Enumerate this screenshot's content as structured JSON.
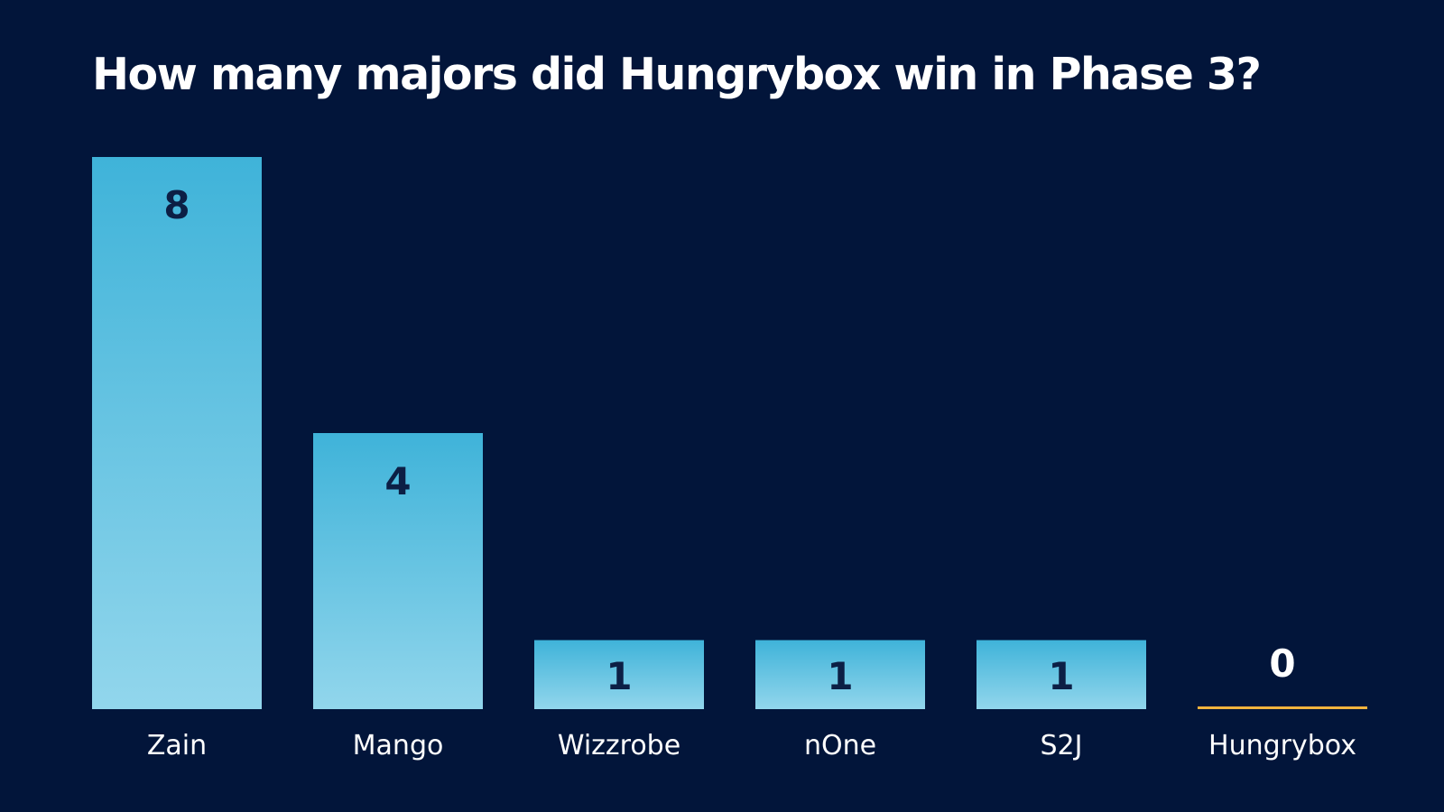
{
  "title": "How many majors did Hungrybox win in Phase 3?",
  "colors": {
    "background": "#02153a",
    "bar_top": "#3fb3d9",
    "bar_bottom": "#92d6ec",
    "bar_label": "#0c1f45",
    "highlight": "#f2b33d",
    "text": "#ffffff"
  },
  "chart_data": {
    "type": "bar",
    "title": "How many majors did Hungrybox win in Phase 3?",
    "categories": [
      "Zain",
      "Mango",
      "Wizzrobe",
      "nOne",
      "S2J",
      "Hungrybox"
    ],
    "values": [
      8,
      4,
      1,
      1,
      1,
      0
    ],
    "highlight_category": "Hungrybox",
    "xlabel": "",
    "ylabel": "",
    "ylim": [
      0,
      8
    ],
    "grid": false,
    "legend": "none",
    "data_labels": true
  }
}
